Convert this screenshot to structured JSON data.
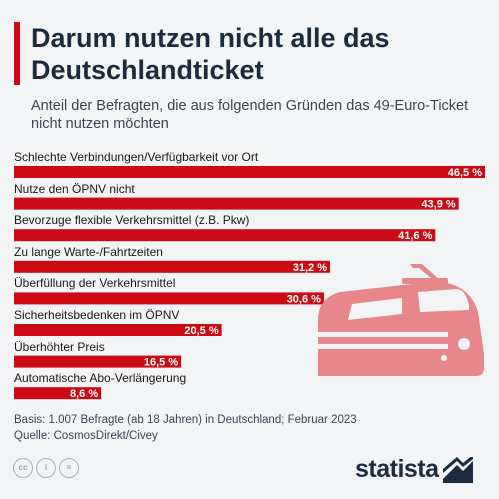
{
  "title": "Darum nutzen nicht alle das Deutschlandticket",
  "subtitle": "Anteil der Befragten, die aus folgenden Gründen das 49-Euro-Ticket nicht nutzen möchten",
  "colors": {
    "accent": "#cc0a14",
    "bar": "#cc0a14",
    "title": "#1c2b3f",
    "background": "#f3f4f6",
    "train": "#e8878b"
  },
  "chart_data": {
    "type": "bar",
    "orientation": "horizontal",
    "categories": [
      "Schlechte Verbindungen/Verfügbarkeit vor Ort",
      "Nutze den ÖPNV nicht",
      "Bevorzuge flexible Verkehrsmittel (z.B. Pkw)",
      "Zu lange Warte-/Fahrtzeiten",
      "Überfüllung der Verkehrsmittel",
      "Sicherheitsbedenken im ÖPNV",
      "Überhöhter Preis",
      "Automatische Abo-Verlängerung"
    ],
    "values": [
      46.5,
      43.9,
      41.6,
      31.2,
      30.6,
      20.5,
      16.5,
      8.6
    ],
    "value_labels": [
      "46,5 %",
      "43,9 %",
      "41,6 %",
      "31,2 %",
      "30,6 %",
      "20,5 %",
      "16,5 %",
      "8,6 %"
    ],
    "xlim": [
      0,
      46.5
    ],
    "grid": false,
    "legend": "none"
  },
  "footnotes": {
    "basis": "Basis: 1.007 Befragte (ab 18 Jahren) in Deutschland; Februar 2023",
    "source": "Quelle: CosmosDirekt/Civey"
  },
  "license_icons": [
    "cc-icon",
    "info-icon",
    "equals-icon"
  ],
  "logo": {
    "text": "statista",
    "icon": "statista-logo-icon"
  }
}
